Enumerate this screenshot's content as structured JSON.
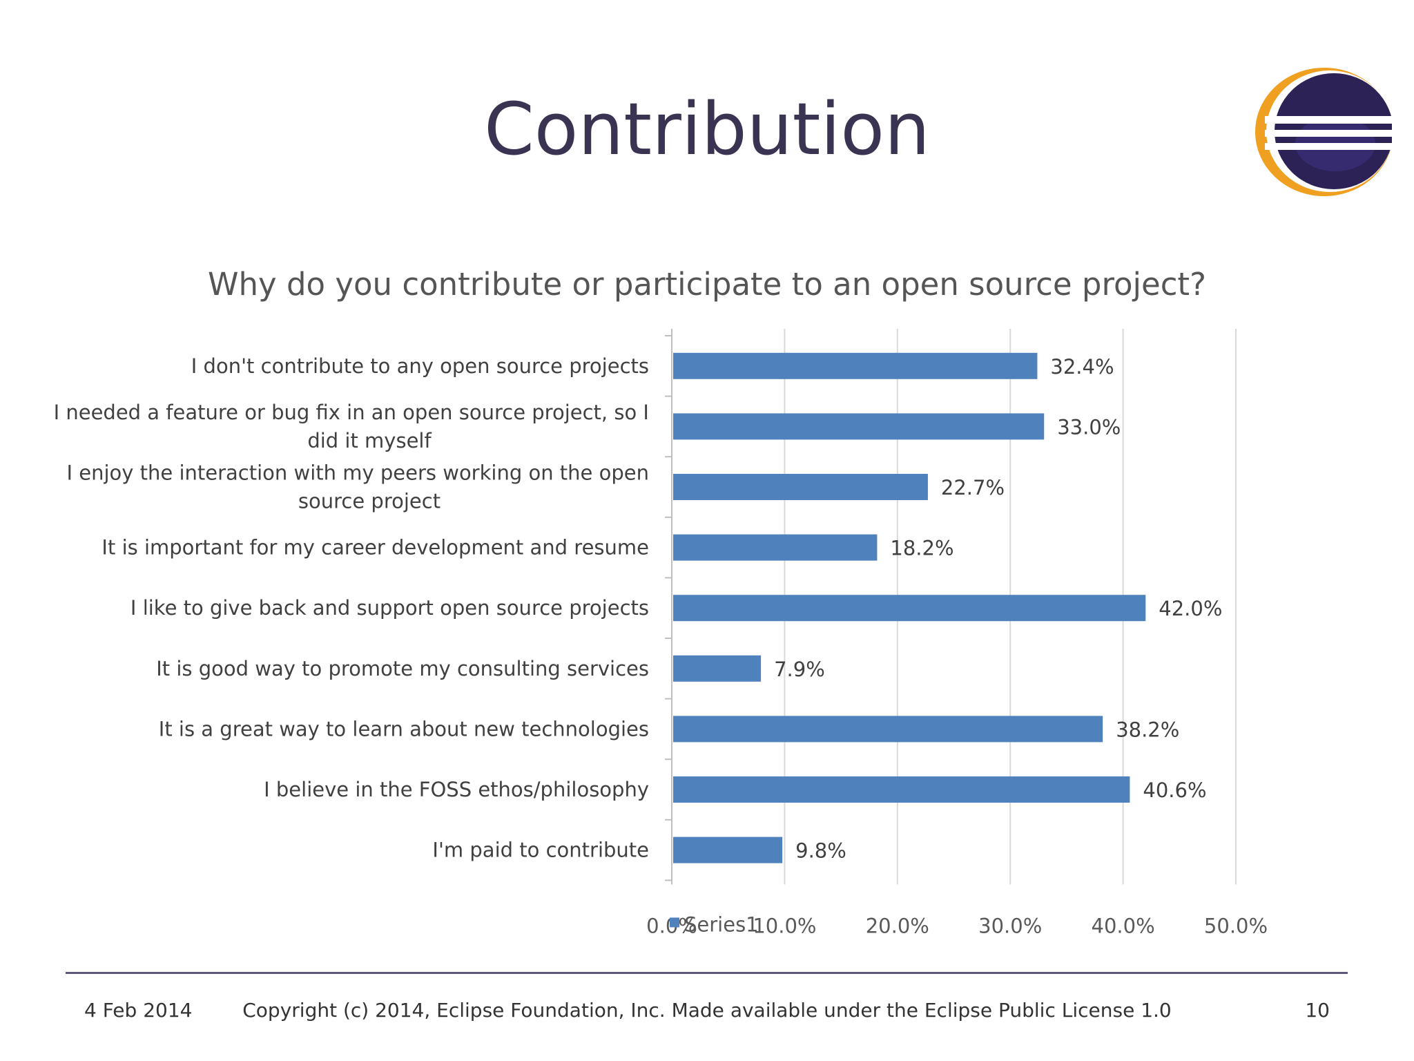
{
  "slide": {
    "title": "Contribution",
    "footer_date": "4 Feb 2014",
    "footer_copyright": "Copyright (c) 2014, Eclipse Foundation, Inc. Made available under the Eclipse Public License 1.0",
    "page_number": "10"
  },
  "colors": {
    "title": "#3b3352",
    "bar": "#4f81bd",
    "logo_orange": "#f0a020",
    "logo_purple": "#2c2255"
  },
  "chart_data": {
    "type": "bar",
    "orientation": "horizontal",
    "title": "Why do you contribute or participate to an open source project?",
    "categories": [
      [
        "I don't contribute to any open source projects"
      ],
      [
        "I needed a feature or bug fix in an open source project, so I",
        "did it myself"
      ],
      [
        "I enjoy the interaction with my peers working on the open",
        "source project"
      ],
      [
        "It is important for my career development and resume"
      ],
      [
        "I like to give back and support  open source projects"
      ],
      [
        "It is good way to promote my consulting services"
      ],
      [
        "It is a great way to learn about new technologies"
      ],
      [
        "I believe in the FOSS ethos/philosophy"
      ],
      [
        "I'm paid to contribute"
      ]
    ],
    "series": [
      {
        "name": "Series1",
        "values": [
          32.4,
          33.0,
          22.7,
          18.2,
          42.0,
          7.9,
          38.2,
          40.6,
          9.8
        ],
        "labels": [
          "32.4%",
          "33.0%",
          "22.7%",
          "18.2%",
          "42.0%",
          "7.9%",
          "38.2%",
          "40.6%",
          "9.8%"
        ]
      }
    ],
    "xlim": [
      0,
      50
    ],
    "xticks": [
      0,
      10,
      20,
      30,
      40,
      50
    ],
    "xtick_labels": [
      "0.0%",
      "10.0%",
      "20.0%",
      "30.0%",
      "40.0%",
      "50.0%"
    ],
    "grid": true,
    "legend": "bottom"
  }
}
